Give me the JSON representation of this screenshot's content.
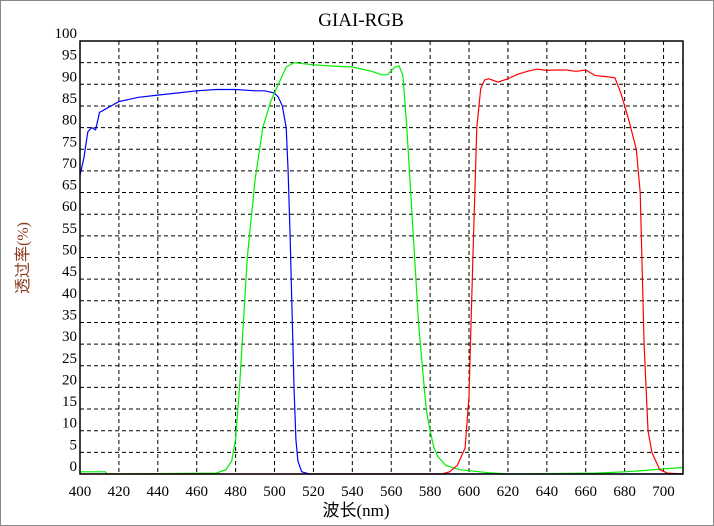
{
  "chart_data": {
    "type": "line",
    "title": "GIAI-RGB",
    "xlabel": "波长(nm)",
    "ylabel": "透过率(%)",
    "xlim": [
      400,
      710
    ],
    "ylim": [
      0,
      100
    ],
    "xticks": [
      400,
      420,
      440,
      460,
      480,
      500,
      520,
      540,
      560,
      580,
      600,
      620,
      640,
      660,
      680,
      700
    ],
    "yticks": [
      0,
      5,
      10,
      15,
      20,
      25,
      30,
      35,
      40,
      45,
      50,
      55,
      60,
      65,
      70,
      75,
      80,
      85,
      90,
      95,
      100
    ],
    "grid": true,
    "series": [
      {
        "color": "#0000ff",
        "points": [
          [
            400,
            69
          ],
          [
            402,
            73
          ],
          [
            404,
            79
          ],
          [
            406,
            80
          ],
          [
            408,
            79.5
          ],
          [
            410,
            83.5
          ],
          [
            412,
            84
          ],
          [
            416,
            85
          ],
          [
            420,
            86
          ],
          [
            430,
            87
          ],
          [
            440,
            87.5
          ],
          [
            450,
            88
          ],
          [
            460,
            88.5
          ],
          [
            470,
            88.8
          ],
          [
            480,
            88.8
          ],
          [
            490,
            88.5
          ],
          [
            495,
            88.5
          ],
          [
            500,
            88
          ],
          [
            502,
            87
          ],
          [
            504,
            85
          ],
          [
            506,
            80
          ],
          [
            507,
            70
          ],
          [
            508,
            55
          ],
          [
            509,
            38
          ],
          [
            510,
            20
          ],
          [
            511,
            8
          ],
          [
            512,
            3
          ],
          [
            514,
            0.5
          ],
          [
            518,
            0
          ],
          [
            710,
            0
          ]
        ]
      },
      {
        "color": "#00ee00",
        "points": [
          [
            400,
            0.5
          ],
          [
            413,
            0.5
          ],
          [
            414,
            0
          ],
          [
            470,
            0.2
          ],
          [
            475,
            1
          ],
          [
            478,
            3
          ],
          [
            480,
            8
          ],
          [
            482,
            20
          ],
          [
            484,
            35
          ],
          [
            486,
            50
          ],
          [
            490,
            68
          ],
          [
            494,
            80
          ],
          [
            498,
            86
          ],
          [
            502,
            90
          ],
          [
            506,
            94
          ],
          [
            510,
            95
          ],
          [
            520,
            94.5
          ],
          [
            530,
            94.2
          ],
          [
            540,
            94
          ],
          [
            550,
            93
          ],
          [
            555,
            92.2
          ],
          [
            558,
            92.2
          ],
          [
            562,
            94
          ],
          [
            564,
            94.3
          ],
          [
            566,
            92
          ],
          [
            568,
            80
          ],
          [
            570,
            65
          ],
          [
            572,
            50
          ],
          [
            574,
            35
          ],
          [
            576,
            25
          ],
          [
            578,
            15
          ],
          [
            580,
            10
          ],
          [
            582,
            6
          ],
          [
            584,
            4
          ],
          [
            588,
            2
          ],
          [
            595,
            1
          ],
          [
            610,
            0.3
          ],
          [
            620,
            0
          ],
          [
            665,
            0.2
          ],
          [
            680,
            0.5
          ],
          [
            690,
            0.8
          ],
          [
            700,
            1.2
          ],
          [
            710,
            1.5
          ]
        ]
      },
      {
        "color": "#ff0000",
        "points": [
          [
            400,
            0
          ],
          [
            586,
            0
          ],
          [
            590,
            0.5
          ],
          [
            594,
            2
          ],
          [
            598,
            6
          ],
          [
            600,
            18
          ],
          [
            602,
            50
          ],
          [
            604,
            80
          ],
          [
            606,
            89
          ],
          [
            608,
            91
          ],
          [
            610,
            91.3
          ],
          [
            615,
            90.5
          ],
          [
            620,
            91.3
          ],
          [
            625,
            92.3
          ],
          [
            630,
            93
          ],
          [
            635,
            93.5
          ],
          [
            640,
            93.2
          ],
          [
            645,
            93.3
          ],
          [
            650,
            93.3
          ],
          [
            655,
            93
          ],
          [
            660,
            93.3
          ],
          [
            665,
            92
          ],
          [
            670,
            91.8
          ],
          [
            675,
            91.5
          ],
          [
            678,
            88
          ],
          [
            682,
            82
          ],
          [
            686,
            75
          ],
          [
            688,
            65
          ],
          [
            690,
            30
          ],
          [
            692,
            10
          ],
          [
            694,
            5
          ],
          [
            698,
            1
          ],
          [
            702,
            0.2
          ],
          [
            710,
            0
          ]
        ]
      }
    ]
  }
}
